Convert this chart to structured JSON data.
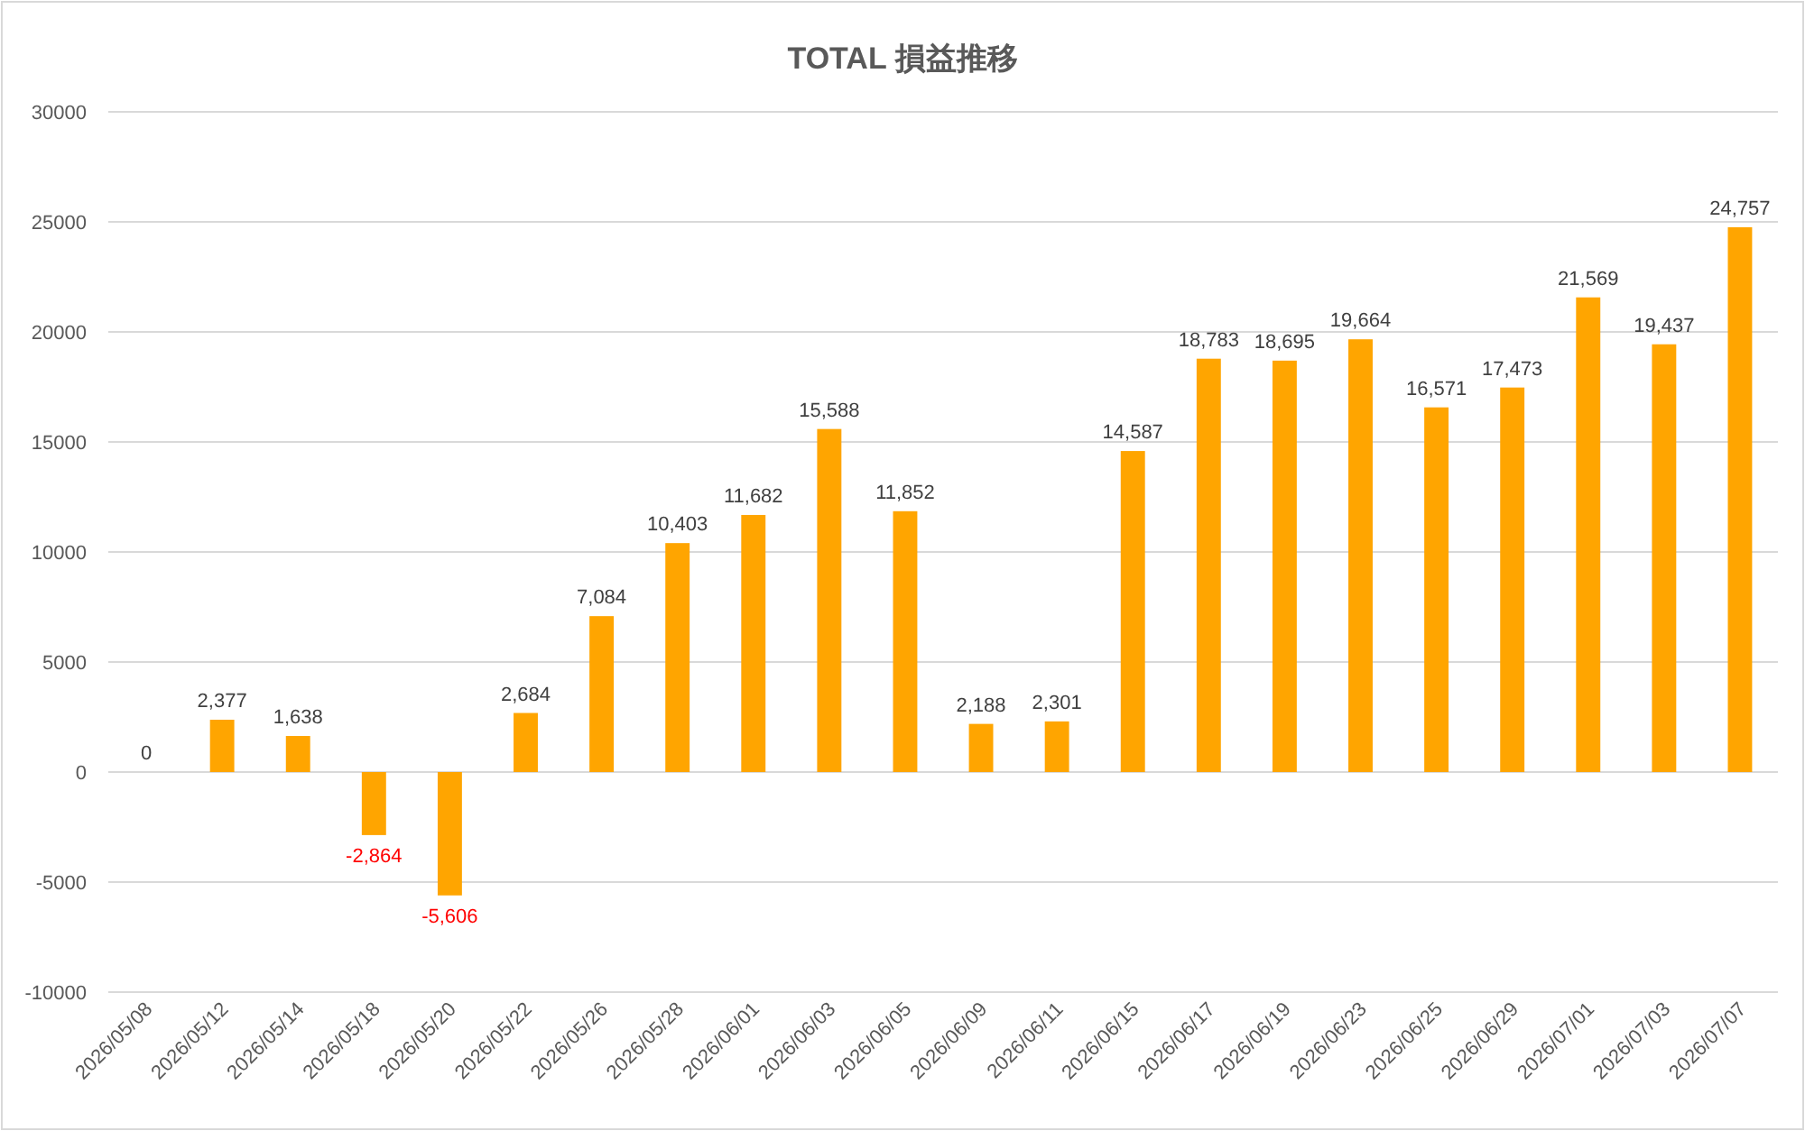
{
  "chart_data": {
    "type": "bar",
    "title": "TOTAL 損益推移",
    "categories": [
      "2026/05/08",
      "2026/05/12",
      "2026/05/14",
      "2026/05/18",
      "2026/05/20",
      "2026/05/22",
      "2026/05/26",
      "2026/05/28",
      "2026/06/01",
      "2026/06/03",
      "2026/06/05",
      "2026/06/09",
      "2026/06/11",
      "2026/06/15",
      "2026/06/17",
      "2026/06/19",
      "2026/06/23",
      "2026/06/25",
      "2026/06/29",
      "2026/07/01",
      "2026/07/03",
      "2026/07/07"
    ],
    "values": [
      0,
      2377,
      1638,
      -2864,
      -5606,
      2684,
      7084,
      10403,
      11682,
      15588,
      11852,
      2188,
      2301,
      14587,
      18783,
      18695,
      19664,
      16571,
      17473,
      21569,
      19437,
      24757
    ],
    "value_labels": [
      "0",
      "2,377",
      "1,638",
      "-2,864",
      "-5,606",
      "2,684",
      "7,084",
      "10,403",
      "11,682",
      "15,588",
      "11,852",
      "2,188",
      "2,301",
      "14,587",
      "18,783",
      "18,695",
      "19,664",
      "16,571",
      "17,473",
      "21,569",
      "19,437",
      "24,757"
    ],
    "color": "#ffa500",
    "ylim": [
      -10000,
      30000
    ],
    "yticks": [
      -10000,
      -5000,
      0,
      5000,
      10000,
      15000,
      20000,
      25000,
      30000
    ],
    "grid": "y"
  }
}
